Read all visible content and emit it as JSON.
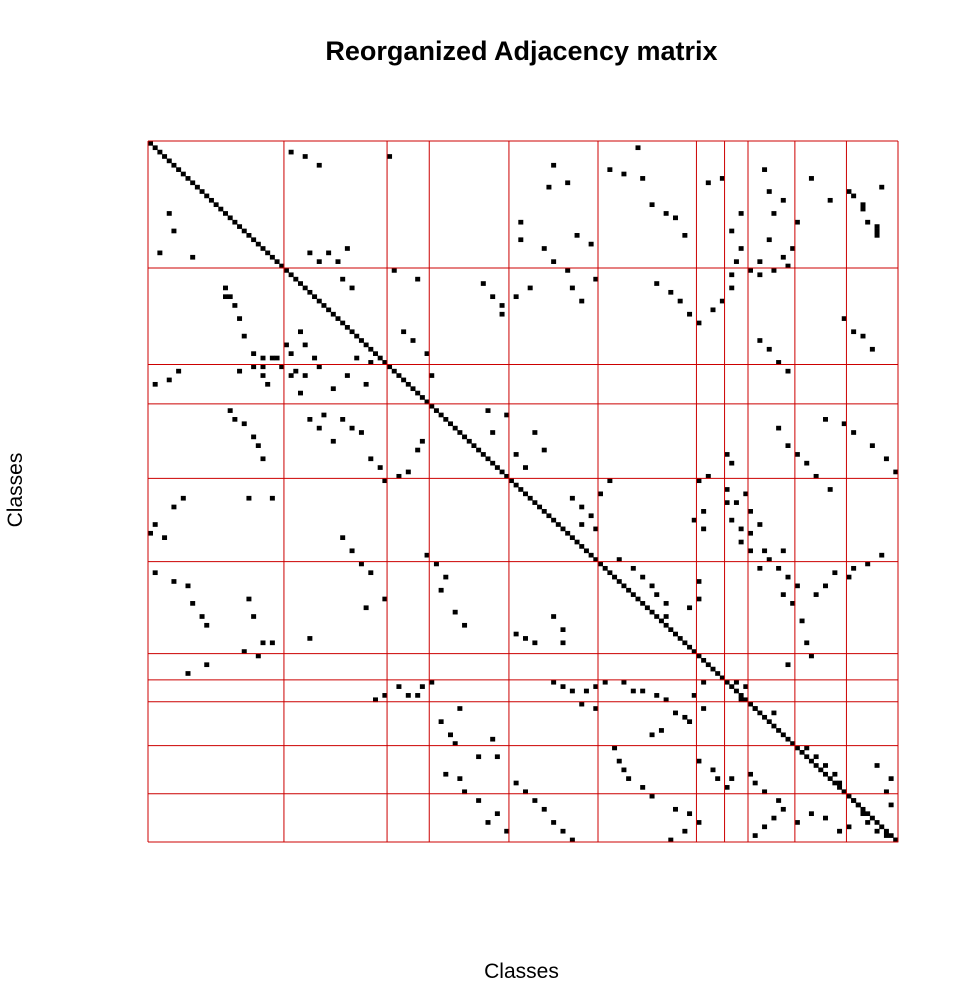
{
  "chart_data": {
    "type": "heatmap",
    "title": "Reorganized Adjacency matrix",
    "xlabel": "Classes",
    "ylabel": "Classes",
    "size": 160,
    "colors": {
      "cell": "#000000",
      "grid": "#cc0000",
      "background": "#ffffff"
    },
    "group_boundaries": [
      0,
      29,
      51,
      60,
      77,
      96,
      117,
      123,
      128,
      138,
      149,
      160
    ],
    "cells": [
      [
        33,
        16
      ],
      [
        35,
        16
      ],
      [
        35,
        17
      ],
      [
        37,
        18
      ],
      [
        40,
        19
      ],
      [
        44,
        20
      ],
      [
        48,
        22
      ],
      [
        49,
        24
      ],
      [
        49,
        26
      ],
      [
        46,
        29
      ],
      [
        48,
        30
      ],
      [
        43,
        32
      ],
      [
        46,
        33
      ],
      [
        49,
        35
      ],
      [
        51,
        36
      ],
      [
        53,
        33
      ],
      [
        51,
        22
      ],
      [
        53,
        24
      ],
      [
        55,
        25
      ],
      [
        51,
        28
      ],
      [
        53,
        30
      ],
      [
        52,
        31
      ],
      [
        25,
        34
      ],
      [
        27,
        36
      ],
      [
        25,
        38
      ],
      [
        27,
        40
      ],
      [
        24,
        42
      ],
      [
        31,
        41
      ],
      [
        33,
        43
      ],
      [
        3,
        51
      ],
      [
        29,
        52
      ],
      [
        31,
        57
      ],
      [
        43,
        54
      ],
      [
        45,
        56
      ],
      [
        48,
        59
      ],
      [
        53,
        60
      ],
      [
        32,
        71
      ],
      [
        35,
        73
      ],
      [
        37,
        75
      ],
      [
        35,
        78
      ],
      [
        33,
        81
      ],
      [
        39,
        75
      ],
      [
        5,
        86
      ],
      [
        10,
        85
      ],
      [
        9,
        89
      ],
      [
        18,
        79
      ],
      [
        22,
        79
      ],
      [
        24,
        84
      ],
      [
        27,
        86
      ],
      [
        29,
        89
      ],
      [
        21,
        91
      ],
      [
        23,
        94
      ],
      [
        31,
        95
      ],
      [
        33,
        90
      ],
      [
        36,
        92
      ],
      [
        1,
        104
      ],
      [
        6,
        98
      ],
      [
        7,
        101
      ],
      [
        8,
        105
      ],
      [
        14,
        107
      ],
      [
        16,
        110
      ],
      [
        17,
        112
      ],
      [
        21,
        114
      ],
      [
        9,
        119
      ],
      [
        8,
        122
      ],
      [
        16,
        126
      ],
      [
        20,
        124
      ],
      [
        24,
        126
      ],
      [
        27,
        125
      ],
      [
        30,
        124
      ],
      [
        33,
        124
      ],
      [
        36,
        122
      ],
      [
        38,
        120
      ],
      [
        6,
        131
      ],
      [
        11,
        132
      ],
      [
        13,
        135
      ],
      [
        16,
        133
      ],
      [
        18,
        138
      ],
      [
        22,
        132
      ],
      [
        24,
        137
      ],
      [
        26,
        135
      ],
      [
        28,
        136
      ],
      [
        29,
        133
      ],
      [
        29,
        128
      ],
      [
        27,
        130
      ],
      [
        30,
        130
      ],
      [
        8,
        141
      ],
      [
        11,
        149
      ],
      [
        13,
        145
      ],
      [
        14,
        152
      ],
      [
        10,
        156
      ],
      [
        19,
        155
      ],
      [
        21,
        155
      ],
      [
        52,
        6
      ],
      [
        54,
        4
      ],
      [
        55,
        1
      ],
      [
        52,
        19
      ],
      [
        51,
        24
      ],
      [
        49,
        27
      ],
      [
        55,
        46
      ],
      [
        56,
        39
      ],
      [
        57,
        32
      ],
      [
        53,
        42
      ],
      [
        49,
        44
      ],
      [
        50,
        47
      ],
      [
        63,
        34
      ],
      [
        65,
        36
      ],
      [
        62,
        37
      ],
      [
        68,
        39
      ],
      [
        63,
        41
      ],
      [
        65,
        43
      ],
      [
        66,
        45
      ],
      [
        72,
        47
      ],
      [
        74,
        49
      ],
      [
        77,
        50
      ],
      [
        76,
        53
      ],
      [
        75,
        55
      ],
      [
        70,
        57
      ],
      [
        68,
        58
      ],
      [
        61,
        72
      ],
      [
        66,
        73
      ],
      [
        62,
        76
      ],
      [
        71,
        78
      ],
      [
        74,
        80
      ],
      [
        66,
        82
      ],
      [
        70,
        84
      ],
      [
        81,
        90
      ],
      [
        83,
        92
      ],
      [
        85,
        94
      ],
      [
        87,
        92
      ],
      [
        88,
        95
      ],
      [
        80,
        96
      ],
      [
        77,
        98
      ],
      [
        77,
        117
      ],
      [
        76,
        119
      ],
      [
        73,
        124
      ],
      [
        71,
        123
      ],
      [
        82,
        125
      ],
      [
        80,
        127
      ],
      [
        84,
        128
      ],
      [
        87,
        130
      ],
      [
        91,
        126
      ],
      [
        93,
        128
      ],
      [
        97,
        134
      ],
      [
        99,
        136
      ],
      [
        101,
        138
      ],
      [
        103,
        135
      ],
      [
        105,
        137
      ],
      [
        93,
        135
      ],
      [
        109,
        139
      ],
      [
        114,
        140
      ],
      [
        117,
        141
      ],
      [
        119,
        136
      ],
      [
        94,
        156
      ],
      [
        96,
        153
      ],
      [
        97,
        150
      ],
      [
        98,
        146
      ],
      [
        99,
        149
      ],
      [
        101,
        144
      ],
      [
        103,
        142
      ],
      [
        95,
        100
      ],
      [
        97,
        103
      ],
      [
        99,
        105
      ],
      [
        101,
        107
      ],
      [
        103,
        108
      ],
      [
        105,
        110
      ],
      [
        108,
        110
      ],
      [
        100,
        117
      ],
      [
        104,
        117
      ],
      [
        106,
        115
      ],
      [
        79,
        123
      ],
      [
        82,
        123
      ],
      [
        84,
        118
      ],
      [
        86,
        116
      ],
      [
        88,
        118
      ],
      [
        83,
        5
      ],
      [
        87,
        1
      ],
      [
        89,
        0
      ],
      [
        90,
        3
      ],
      [
        81,
        7
      ],
      [
        81,
        21
      ],
      [
        81,
        26
      ],
      [
        98,
        1
      ],
      [
        100,
        5
      ],
      [
        101,
        8
      ],
      [
        105,
        9
      ],
      [
        108,
        11
      ],
      [
        110,
        12
      ],
      [
        104,
        21
      ],
      [
        108,
        22
      ],
      [
        114,
        24
      ],
      [
        117,
        23
      ],
      [
        112,
        78
      ],
      [
        113,
        80
      ],
      [
        114,
        82
      ],
      [
        108,
        86
      ],
      [
        111,
        88
      ],
      [
        114,
        88
      ],
      [
        124,
        53
      ],
      [
        126,
        55
      ],
      [
        124,
        58
      ],
      [
        126,
        57
      ],
      [
        127,
        48
      ],
      [
        126,
        50
      ],
      [
        123,
        60
      ],
      [
        132,
        62
      ],
      [
        129,
        66
      ],
      [
        135,
        64
      ],
      [
        137,
        65
      ],
      [
        140,
        70
      ],
      [
        140,
        74
      ],
      [
        136,
        73
      ],
      [
        123,
        86
      ],
      [
        124,
        88
      ],
      [
        125,
        90
      ],
      [
        125,
        93
      ],
      [
        124,
        95
      ],
      [
        123,
        97
      ],
      [
        128,
        92
      ],
      [
        129,
        95
      ],
      [
        123,
        101
      ],
      [
        125,
        103
      ],
      [
        125,
        105
      ],
      [
        126,
        108
      ],
      [
        127,
        110
      ],
      [
        130,
        112
      ],
      [
        131,
        114
      ],
      [
        134,
        109
      ],
      [
        135,
        107
      ],
      [
        123,
        118
      ],
      [
        126,
        116
      ],
      [
        129,
        118
      ],
      [
        132,
        115
      ],
      [
        144,
        63
      ],
      [
        145,
        66
      ],
      [
        148,
        67
      ],
      [
        150,
        70
      ],
      [
        155,
        72
      ],
      [
        153,
        74
      ],
      [
        157,
        76
      ],
      [
        146,
        78
      ],
      [
        148,
        80
      ],
      [
        150,
        82
      ],
      [
        152,
        84
      ],
      [
        155,
        86
      ],
      [
        157,
        88
      ],
      [
        159,
        90
      ],
      [
        138,
        99
      ],
      [
        141,
        100
      ],
      [
        143,
        101
      ],
      [
        145,
        102
      ],
      [
        147,
        105
      ],
      [
        149,
        107
      ],
      [
        152,
        112
      ],
      [
        153,
        115
      ],
      [
        155,
        117
      ],
      [
        157,
        114
      ],
      [
        159,
        111
      ],
      [
        141,
        117
      ],
      [
        143,
        120
      ],
      [
        145,
        121
      ],
      [
        145,
        124
      ],
      [
        147,
        123
      ],
      [
        144,
        128
      ],
      [
        146,
        129
      ],
      [
        148,
        131
      ],
      [
        150,
        134
      ],
      [
        152,
        135
      ],
      [
        154,
        133
      ],
      [
        156,
        131
      ],
      [
        158,
        129
      ],
      [
        138,
        140
      ],
      [
        140,
        142
      ],
      [
        142,
        144
      ],
      [
        144,
        146
      ],
      [
        146,
        147
      ],
      [
        148,
        148
      ],
      [
        151,
        151
      ],
      [
        153,
        152
      ],
      [
        155,
        153
      ],
      [
        157,
        155
      ],
      [
        158,
        157
      ],
      [
        159,
        159
      ],
      [
        155,
        138
      ],
      [
        153,
        141
      ],
      [
        154,
        144
      ],
      [
        157,
        147
      ],
      [
        156,
        149
      ],
      [
        142,
        155
      ],
      [
        145,
        158
      ],
      [
        148,
        157
      ],
      [
        151,
        158
      ],
      [
        150,
        150
      ],
      [
        123,
        125
      ],
      [
        124,
        127
      ],
      [
        127,
        126
      ],
      [
        129,
        129
      ],
      [
        130,
        133
      ],
      [
        121,
        8
      ],
      [
        119,
        12
      ],
      [
        116,
        20
      ],
      [
        114,
        26
      ],
      [
        113,
        34
      ],
      [
        90,
        41
      ],
      [
        93,
        43
      ],
      [
        96,
        45
      ],
      [
        98,
        47
      ],
      [
        104,
        50
      ],
      [
        106,
        46
      ],
      [
        94,
        59
      ],
      [
        96,
        61
      ],
      [
        99,
        63
      ],
      [
        102,
        62
      ],
      [
        107,
        65
      ],
      [
        110,
        67
      ],
      [
        63,
        144
      ],
      [
        64,
        148
      ],
      [
        66,
        150
      ],
      [
        69,
        154
      ],
      [
        72,
        157
      ],
      [
        75,
        159
      ],
      [
        65,
        134
      ],
      [
        69,
        136
      ],
      [
        71,
        138
      ],
      [
        73,
        140
      ],
      [
        76,
        142
      ],
      [
        79,
        145
      ],
      [
        86,
        124
      ],
      [
        88,
        126
      ],
      [
        89,
        128
      ],
      [
        93,
        131
      ],
      [
        95,
        132
      ],
      [
        97,
        130
      ],
      [
        61,
        17
      ],
      [
        63,
        18
      ],
      [
        64,
        20
      ],
      [
        67,
        22
      ],
      [
        69,
        23
      ],
      [
        72,
        24
      ],
      [
        32,
        108
      ],
      [
        34,
        111
      ],
      [
        36,
        113
      ],
      [
        39,
        115
      ],
      [
        41,
        117
      ],
      [
        45,
        130
      ],
      [
        47,
        132
      ],
      [
        50,
        134
      ],
      [
        52,
        136
      ],
      [
        40,
        148
      ],
      [
        43,
        150
      ],
      [
        44,
        152
      ],
      [
        47,
        154
      ],
      [
        12,
        150
      ],
      [
        15,
        152
      ],
      [
        18,
        153
      ],
      [
        20,
        155
      ],
      [
        16,
        4
      ],
      [
        20,
        5
      ],
      [
        25,
        2
      ],
      [
        26,
        9
      ],
      [
        2,
        30
      ],
      [
        3,
        33
      ],
      [
        5,
        36
      ]
    ]
  }
}
